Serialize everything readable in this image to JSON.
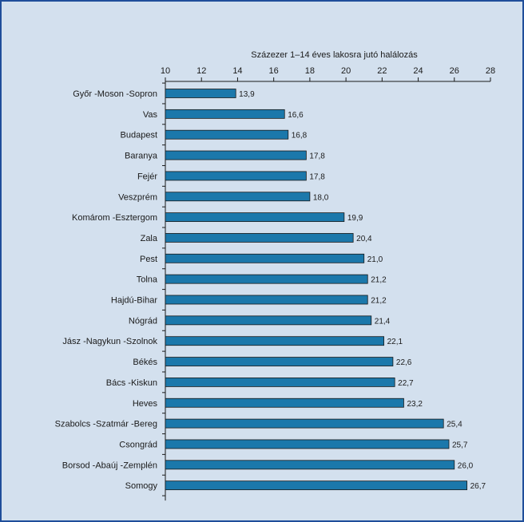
{
  "chart_data": {
    "type": "bar",
    "orientation": "horizontal",
    "title": "",
    "xlabel": "Százezer 1–14 éves lakosra jutó halálozás",
    "ylabel": "",
    "xlim": [
      10,
      28
    ],
    "xticks": [
      "10",
      "12",
      "14",
      "16",
      "18",
      "20",
      "22",
      "24",
      "26",
      "28"
    ],
    "x_axis_position": "top",
    "grid": false,
    "bar_color": "#1b78ab",
    "background_color": "#d3e0ee",
    "frame_color": "#1f4e9a",
    "categories": [
      "Győr -Moson -Sopron",
      "Vas",
      "Budapest",
      "Baranya",
      "Fejér",
      "Veszprém",
      "Komárom -Esztergom",
      "Zala",
      "Pest",
      "Tolna",
      "Hajdú-Bihar",
      "Nógrád",
      "Jász -Nagykun -Szolnok",
      "Békés",
      "Bács -Kiskun",
      "Heves",
      "Szabolcs -Szatmár -Bereg",
      "Csongrád",
      "Borsod -Abaúj -Zemplén",
      "Somogy"
    ],
    "values": [
      13.9,
      16.6,
      16.8,
      17.8,
      17.8,
      18.0,
      19.9,
      20.4,
      21.0,
      21.2,
      21.2,
      21.4,
      22.1,
      22.6,
      22.7,
      23.2,
      25.4,
      25.7,
      26.0,
      26.7
    ],
    "data_labels": [
      "13,9",
      "16,6",
      "16,8",
      "17,8",
      "17,8",
      "18,0",
      "19,9",
      "20,4",
      "21,0",
      "21,2",
      "21,2",
      "21,4",
      "22,1",
      "22,6",
      "22,7",
      "23,2",
      "25,4",
      "25,7",
      "26,0",
      "26,7"
    ]
  }
}
